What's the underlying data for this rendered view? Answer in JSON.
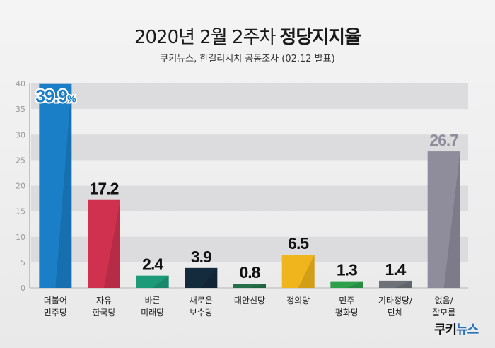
{
  "header": {
    "title_main": "2020년 2월 2주차",
    "title_bold": "정당지지율",
    "subtitle": "쿠키뉴스, 한길리서치 공동조사 (02.12 발표)"
  },
  "brand": {
    "prefix": "쿠키",
    "suffix": "뉴스"
  },
  "colors": {
    "background": "#ededed",
    "band": "#dcdcde",
    "axis": "#999999"
  },
  "chart_data": {
    "type": "bar",
    "title": "정당지지율",
    "categories": [
      [
        "더불어",
        "민주당"
      ],
      [
        "자유",
        "한국당"
      ],
      [
        "바른",
        "미래당"
      ],
      [
        "새로운",
        "보수당"
      ],
      [
        "대안신당"
      ],
      [
        "정의당"
      ],
      [
        "민주",
        "평화당"
      ],
      [
        "기타정당/",
        "단체"
      ],
      [
        "없음/",
        "잘모름"
      ]
    ],
    "values": [
      39.9,
      17.2,
      2.4,
      3.9,
      0.8,
      6.5,
      1.3,
      1.4,
      26.7
    ],
    "value_labels": [
      "39.9",
      "17.2",
      "2.4",
      "3.9",
      "0.8",
      "6.5",
      "1.3",
      "1.4",
      "26.7"
    ],
    "first_label_suffix": "%",
    "colors": [
      "#1a7fc6",
      "#d0314f",
      "#1d9a78",
      "#142b3e",
      "#25704a",
      "#f0b41c",
      "#2da04b",
      "#6e7278",
      "#8f8d9c"
    ],
    "value_label_colors": [
      "#1a7fc6",
      "#111111",
      "#111111",
      "#111111",
      "#111111",
      "#111111",
      "#111111",
      "#111111",
      "#8f8d9c"
    ],
    "ylim": [
      0,
      40
    ],
    "yticks": [
      0,
      5,
      10,
      15,
      20,
      25,
      30,
      35,
      40
    ],
    "grid": "alternating bands"
  }
}
